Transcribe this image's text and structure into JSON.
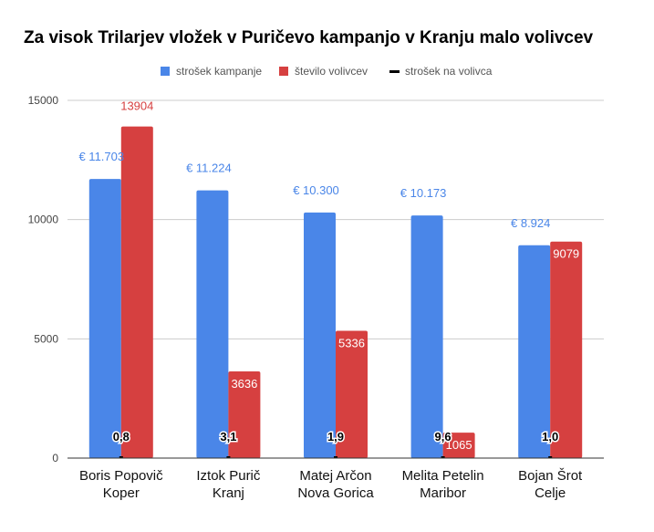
{
  "chart_data": {
    "type": "bar",
    "title": "Za visok Trilarjev vložek v Puričevo kampanjo v Kranju malo volivcev",
    "categories": [
      [
        "Boris Popovič",
        "Koper"
      ],
      [
        "Iztok Purič",
        "Kranj"
      ],
      [
        "Matej Arčon",
        "Nova Gorica"
      ],
      [
        "Melita Petelin",
        "Maribor"
      ],
      [
        "Bojan Šrot",
        "Celje"
      ]
    ],
    "series": [
      {
        "name": "strošek kampanje",
        "color": "#4a86e8",
        "values": [
          11703,
          11224,
          10300,
          10173,
          8924
        ],
        "labels": [
          "€ 11.703",
          "€ 11.224",
          "€ 10.300",
          "€ 10.173",
          "€ 8.924"
        ]
      },
      {
        "name": "število volivcev",
        "color": "#d64040",
        "values": [
          13904,
          3636,
          5336,
          1065,
          9079
        ],
        "labels": [
          "13904",
          "3636",
          "5336",
          "1065",
          "9079"
        ]
      },
      {
        "name": "strošek na volivca",
        "color": "#000000",
        "values": [
          0.8,
          3.1,
          1.9,
          9.6,
          1.0
        ],
        "labels": [
          "0,8",
          "3,1",
          "1,9",
          "9,6",
          "1,0"
        ]
      }
    ],
    "yticks": [
      "0",
      "5000",
      "10000",
      "15000"
    ],
    "ylim": [
      0,
      15000
    ],
    "grid": true,
    "legend_position": "top-center"
  }
}
